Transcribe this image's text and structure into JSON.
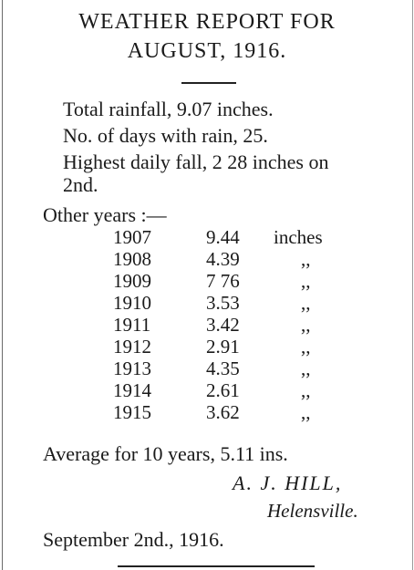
{
  "title_line1": "WEATHER REPORT FOR",
  "title_line2": "AUGUST, 1916.",
  "stats": {
    "rainfall": "Total rainfall, 9.07 inches.",
    "days": "No. of days with rain, 25.",
    "highest_1": "Highest daily fall, 2 28 inches on",
    "highest_2": "2nd."
  },
  "other_years_label": "Other years :—",
  "years": [
    {
      "year": "1907",
      "value": "9.44",
      "unit": "inches"
    },
    {
      "year": "1908",
      "value": "4.39",
      "unit": ",,"
    },
    {
      "year": "1909",
      "value": "7 76",
      "unit": ",,"
    },
    {
      "year": "1910",
      "value": "3.53",
      "unit": ",,"
    },
    {
      "year": "1911",
      "value": "3.42",
      "unit": ",,"
    },
    {
      "year": "1912",
      "value": "2.91",
      "unit": ",,"
    },
    {
      "year": "1913",
      "value": "4.35",
      "unit": ",,"
    },
    {
      "year": "1914",
      "value": "2.61",
      "unit": ",,"
    },
    {
      "year": "1915",
      "value": "3.62",
      "unit": ",,"
    }
  ],
  "average": "Average for 10 years, 5.11 ins.",
  "signature": {
    "name": "A. J. HILL,",
    "place": "Helensville."
  },
  "date_line": "September 2nd., 1916."
}
